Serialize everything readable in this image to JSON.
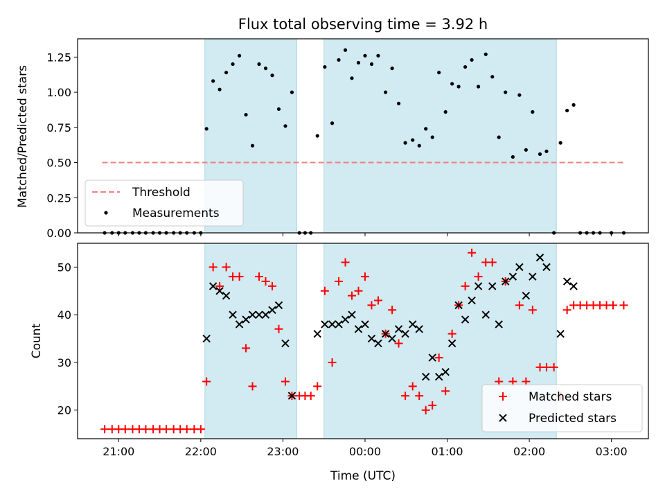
{
  "chart_data": {
    "title": "Flux total observing time = 3.92 h",
    "xlabel": "Time (UTC)",
    "x_ticks": [
      "21:00",
      "22:00",
      "23:00",
      "00:00",
      "01:00",
      "02:00",
      "03:00"
    ],
    "x_tick_hours": [
      21,
      22,
      23,
      24,
      25,
      26,
      27
    ],
    "x_range_hours": [
      20.5,
      27.45
    ],
    "shaded_intervals_hours": [
      [
        22.05,
        23.17
      ],
      [
        23.5,
        26.33
      ]
    ],
    "shade_color": "#add8e6",
    "panels": [
      {
        "type": "scatter",
        "ylabel": "Matched/Predicted stars",
        "ylim": [
          0,
          1.38
        ],
        "y_ticks": [
          "0.00",
          "0.25",
          "0.50",
          "0.75",
          "1.00",
          "1.25"
        ],
        "y_tick_values": [
          0,
          0.25,
          0.5,
          0.75,
          1.0,
          1.25
        ],
        "threshold": {
          "name": "Threshold",
          "value": 0.5,
          "x_range_hours": [
            20.8,
            27.15
          ],
          "color": "#f08080"
        },
        "legend": {
          "position": "lower-left",
          "entries": [
            "Threshold",
            "Measurements"
          ]
        },
        "series": [
          {
            "name": "Measurements",
            "color": "#000000",
            "points": [
              [
                20.83,
                0
              ],
              [
                20.92,
                0
              ],
              [
                21.0,
                0
              ],
              [
                21.08,
                0
              ],
              [
                21.17,
                0
              ],
              [
                21.25,
                0
              ],
              [
                21.33,
                0
              ],
              [
                21.42,
                0
              ],
              [
                21.5,
                0
              ],
              [
                21.58,
                0
              ],
              [
                21.67,
                0
              ],
              [
                21.75,
                0
              ],
              [
                21.83,
                0
              ],
              [
                21.92,
                0
              ],
              [
                22.0,
                0
              ],
              [
                22.07,
                0.74
              ],
              [
                22.15,
                1.08
              ],
              [
                22.23,
                1.02
              ],
              [
                22.31,
                1.14
              ],
              [
                22.39,
                1.2
              ],
              [
                22.47,
                1.26
              ],
              [
                22.55,
                0.84
              ],
              [
                22.63,
                0.62
              ],
              [
                22.71,
                1.2
              ],
              [
                22.79,
                1.17
              ],
              [
                22.87,
                1.12
              ],
              [
                22.95,
                0.88
              ],
              [
                23.03,
                0.76
              ],
              [
                23.11,
                1.0
              ],
              [
                23.2,
                0
              ],
              [
                23.27,
                0
              ],
              [
                23.34,
                0
              ],
              [
                23.42,
                0.69
              ],
              [
                23.51,
                1.18
              ],
              [
                23.6,
                0.78
              ],
              [
                23.68,
                1.23
              ],
              [
                23.76,
                1.3
              ],
              [
                23.84,
                1.1
              ],
              [
                23.92,
                1.21
              ],
              [
                24.0,
                1.26
              ],
              [
                24.08,
                1.2
              ],
              [
                24.16,
                1.26
              ],
              [
                24.25,
                1.0
              ],
              [
                24.33,
                1.17
              ],
              [
                24.41,
                0.92
              ],
              [
                24.49,
                0.64
              ],
              [
                24.58,
                0.66
              ],
              [
                24.66,
                0.62
              ],
              [
                24.74,
                0.74
              ],
              [
                24.82,
                0.68
              ],
              [
                24.9,
                1.14
              ],
              [
                24.98,
                0.86
              ],
              [
                25.06,
                1.06
              ],
              [
                25.14,
                1.04
              ],
              [
                25.22,
                1.18
              ],
              [
                25.3,
                1.23
              ],
              [
                25.38,
                1.04
              ],
              [
                25.47,
                1.27
              ],
              [
                25.55,
                1.11
              ],
              [
                25.63,
                0.68
              ],
              [
                25.71,
                1.0
              ],
              [
                25.8,
                0.54
              ],
              [
                25.88,
                0.98
              ],
              [
                25.96,
                0.59
              ],
              [
                26.04,
                0.86
              ],
              [
                26.13,
                0.56
              ],
              [
                26.21,
                0.58
              ],
              [
                26.3,
                0
              ],
              [
                26.38,
                0.64
              ],
              [
                26.46,
                0.87
              ],
              [
                26.54,
                0.91
              ],
              [
                26.62,
                0
              ],
              [
                26.7,
                0
              ],
              [
                26.78,
                0
              ],
              [
                26.86,
                0
              ],
              [
                27.0,
                0
              ],
              [
                27.15,
                0
              ]
            ]
          }
        ]
      },
      {
        "type": "scatter",
        "ylabel": "Count",
        "ylim": [
          14,
          55
        ],
        "y_ticks": [
          "20",
          "30",
          "40",
          "50"
        ],
        "y_tick_values": [
          20,
          30,
          40,
          50
        ],
        "legend": {
          "position": "lower-right",
          "entries": [
            "Matched stars",
            "Predicted stars"
          ]
        },
        "series": [
          {
            "name": "Matched stars",
            "marker": "+",
            "color": "#ff0000",
            "points": [
              [
                20.83,
                16
              ],
              [
                20.92,
                16
              ],
              [
                21.0,
                16
              ],
              [
                21.08,
                16
              ],
              [
                21.17,
                16
              ],
              [
                21.25,
                16
              ],
              [
                21.33,
                16
              ],
              [
                21.42,
                16
              ],
              [
                21.5,
                16
              ],
              [
                21.58,
                16
              ],
              [
                21.67,
                16
              ],
              [
                21.75,
                16
              ],
              [
                21.83,
                16
              ],
              [
                21.92,
                16
              ],
              [
                22.0,
                16
              ],
              [
                22.07,
                26
              ],
              [
                22.15,
                50
              ],
              [
                22.23,
                46
              ],
              [
                22.31,
                50
              ],
              [
                22.39,
                48
              ],
              [
                22.47,
                48
              ],
              [
                22.55,
                33
              ],
              [
                22.63,
                25
              ],
              [
                22.71,
                48
              ],
              [
                22.79,
                47
              ],
              [
                22.87,
                46
              ],
              [
                22.95,
                37
              ],
              [
                23.03,
                26
              ],
              [
                23.11,
                23
              ],
              [
                23.2,
                23
              ],
              [
                23.27,
                23
              ],
              [
                23.34,
                23
              ],
              [
                23.42,
                25
              ],
              [
                23.51,
                45
              ],
              [
                23.6,
                30
              ],
              [
                23.68,
                47
              ],
              [
                23.76,
                51
              ],
              [
                23.84,
                44
              ],
              [
                23.92,
                45
              ],
              [
                24.0,
                48
              ],
              [
                24.08,
                42
              ],
              [
                24.16,
                43
              ],
              [
                24.25,
                36
              ],
              [
                24.33,
                41
              ],
              [
                24.41,
                34
              ],
              [
                24.49,
                23
              ],
              [
                24.58,
                25
              ],
              [
                24.66,
                23
              ],
              [
                24.74,
                20
              ],
              [
                24.82,
                21
              ],
              [
                24.9,
                31
              ],
              [
                24.98,
                24
              ],
              [
                25.06,
                36
              ],
              [
                25.14,
                42
              ],
              [
                25.22,
                46
              ],
              [
                25.3,
                53
              ],
              [
                25.38,
                48
              ],
              [
                25.47,
                51
              ],
              [
                25.55,
                51
              ],
              [
                25.63,
                26
              ],
              [
                25.71,
                47
              ],
              [
                25.8,
                26
              ],
              [
                25.88,
                42
              ],
              [
                25.96,
                26
              ],
              [
                26.04,
                41
              ],
              [
                26.13,
                29
              ],
              [
                26.21,
                29
              ],
              [
                26.3,
                29
              ],
              [
                26.38,
                23
              ],
              [
                26.46,
                41
              ],
              [
                26.54,
                42
              ],
              [
                26.62,
                42
              ],
              [
                26.7,
                42
              ],
              [
                26.78,
                42
              ],
              [
                26.86,
                42
              ],
              [
                26.94,
                42
              ],
              [
                27.02,
                42
              ],
              [
                27.15,
                42
              ]
            ]
          },
          {
            "name": "Predicted stars",
            "marker": "x",
            "color": "#000000",
            "points": [
              [
                22.07,
                35
              ],
              [
                22.15,
                46
              ],
              [
                22.23,
                45
              ],
              [
                22.31,
                44
              ],
              [
                22.39,
                40
              ],
              [
                22.47,
                38
              ],
              [
                22.55,
                39
              ],
              [
                22.63,
                40
              ],
              [
                22.71,
                40
              ],
              [
                22.79,
                40
              ],
              [
                22.87,
                41
              ],
              [
                22.95,
                42
              ],
              [
                23.03,
                34
              ],
              [
                23.11,
                23
              ],
              [
                23.42,
                36
              ],
              [
                23.51,
                38
              ],
              [
                23.6,
                38
              ],
              [
                23.68,
                38
              ],
              [
                23.76,
                39
              ],
              [
                23.84,
                40
              ],
              [
                23.92,
                37
              ],
              [
                24.0,
                38
              ],
              [
                24.08,
                35
              ],
              [
                24.16,
                34
              ],
              [
                24.25,
                36
              ],
              [
                24.33,
                35
              ],
              [
                24.41,
                37
              ],
              [
                24.49,
                36
              ],
              [
                24.58,
                38
              ],
              [
                24.66,
                37
              ],
              [
                24.74,
                27
              ],
              [
                24.82,
                31
              ],
              [
                24.9,
                27
              ],
              [
                24.98,
                28
              ],
              [
                25.06,
                34
              ],
              [
                25.14,
                42
              ],
              [
                25.22,
                39
              ],
              [
                25.3,
                43
              ],
              [
                25.38,
                46
              ],
              [
                25.47,
                40
              ],
              [
                25.55,
                46
              ],
              [
                25.63,
                38
              ],
              [
                25.71,
                47
              ],
              [
                25.8,
                48
              ],
              [
                25.88,
                50
              ],
              [
                25.96,
                44
              ],
              [
                26.04,
                48
              ],
              [
                26.13,
                52
              ],
              [
                26.21,
                50
              ],
              [
                26.38,
                36
              ],
              [
                26.46,
                47
              ],
              [
                26.54,
                46
              ]
            ]
          }
        ]
      }
    ]
  }
}
